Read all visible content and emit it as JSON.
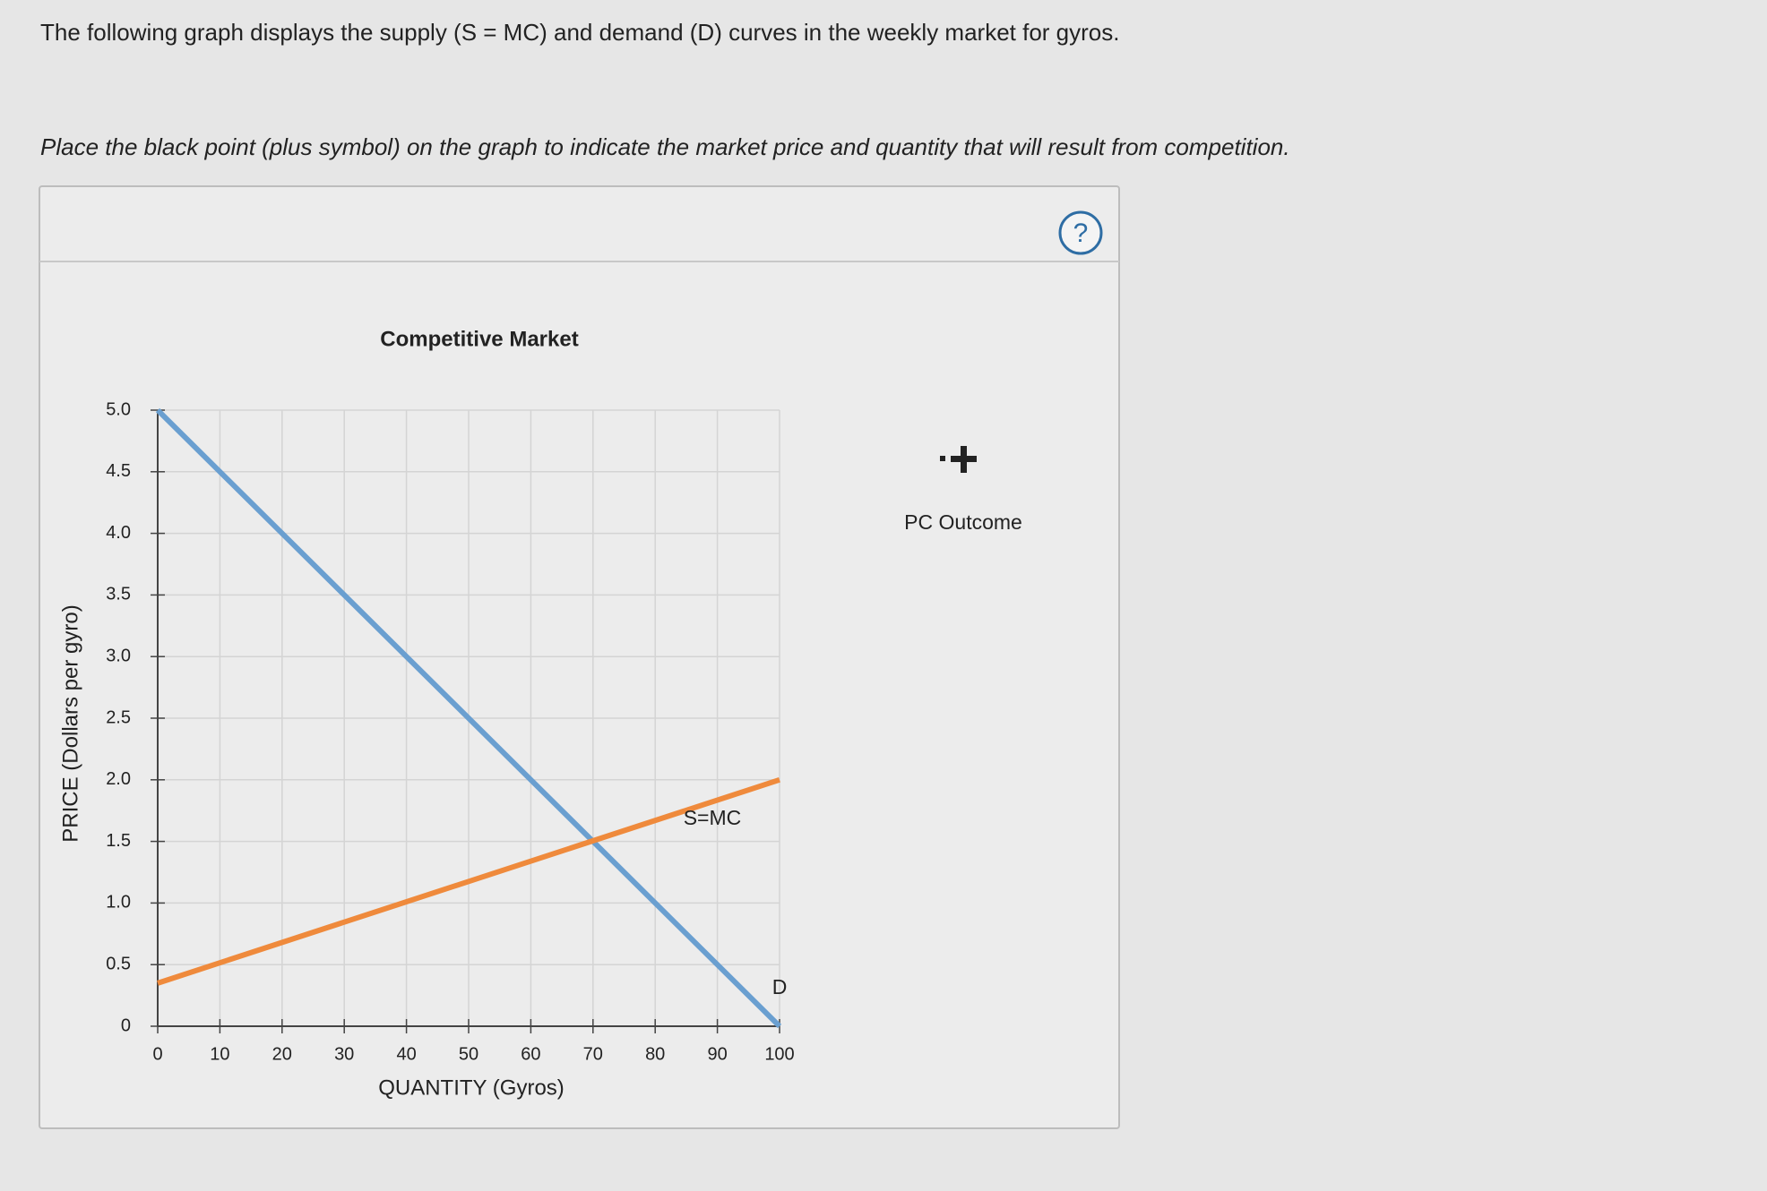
{
  "question": {
    "intro": "The following graph displays the supply (S = MC) and demand (D) curves in the weekly market for gyros.",
    "instruction": "Place the black point (plus symbol) on the graph to indicate the market price and quantity that will result from competition.",
    "help": "?"
  },
  "tool": {
    "label": "PC Outcome"
  },
  "chart_data": {
    "type": "line",
    "title": "Competitive Market",
    "x_label": "QUANTITY (Gyros)",
    "y_label": "PRICE (Dollars per gyro)",
    "x": [
      0,
      100
    ],
    "series": [
      {
        "name": "D",
        "color": "#6a9fd0",
        "values": [
          5.0,
          0
        ]
      },
      {
        "name": "S=MC",
        "color": "#ef8a3c",
        "values": [
          0.35,
          2.0
        ]
      }
    ],
    "xlim": [
      0,
      100
    ],
    "ylim": [
      0,
      5
    ],
    "xticks": [
      0,
      10,
      20,
      30,
      40,
      50,
      60,
      70,
      80,
      90,
      100
    ],
    "yticks": [
      0,
      0.5,
      {
        "value": 1,
        "label": "1.0"
      },
      1.5,
      {
        "value": 2,
        "label": "2.0"
      },
      2.5,
      {
        "value": 3,
        "label": "3.0"
      },
      3.5,
      {
        "value": 4,
        "label": "4.0"
      },
      4.5,
      {
        "value": 5,
        "label": "5.0"
      }
    ],
    "grid": true
  }
}
